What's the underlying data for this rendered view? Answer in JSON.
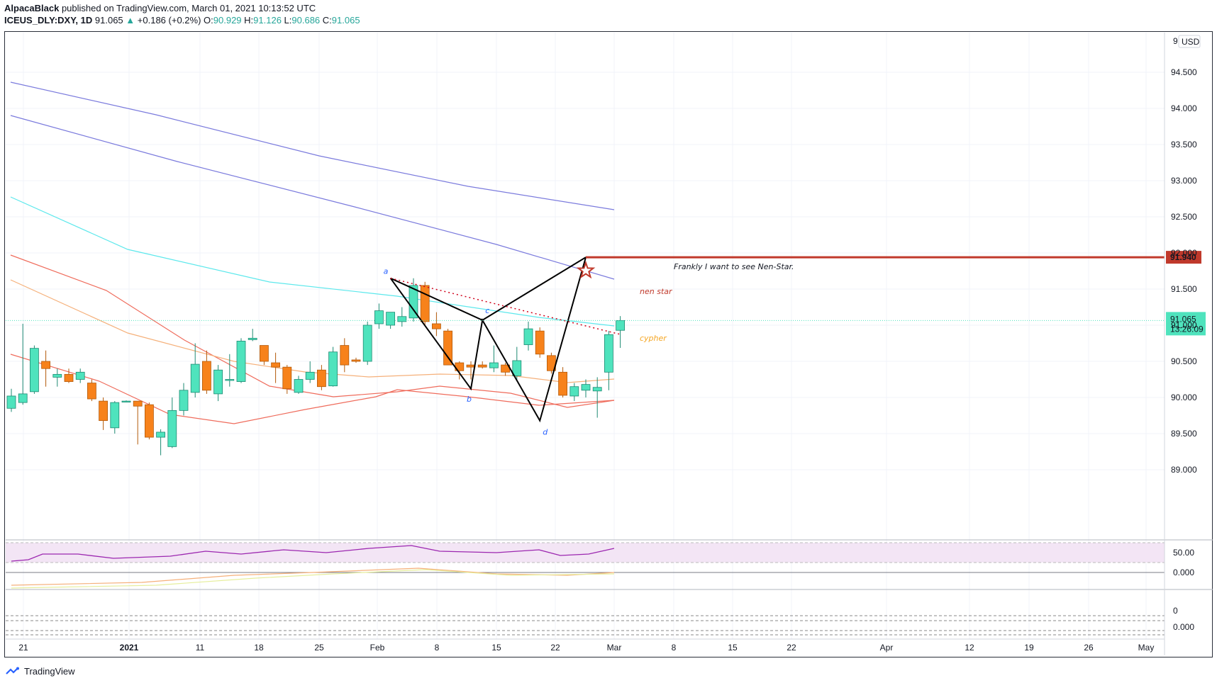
{
  "header": {
    "author": "AlpacaBlack",
    "published": "published on TradingView.com, March 01, 2021 10:13:52 UTC",
    "symbol": "ICEUS_DLY:DXY, 1D",
    "price": "91.065",
    "change": "+0.186 (+0.2%)",
    "ohlc": {
      "o": "90.929",
      "h": "91.126",
      "l": "90.686",
      "c": "91.065"
    }
  },
  "footer": {
    "brand": "TradingView"
  },
  "colors": {
    "up": "#4fe3bd",
    "down": "#f7821b",
    "accent": "#c0392b"
  },
  "chart_data": {
    "type": "candlestick",
    "currency": "USD",
    "ylim": [
      88.5,
      95.0
    ],
    "y_ticks": [
      "89.000",
      "89.500",
      "90.000",
      "90.500",
      "91.000",
      "91.500",
      "92.000",
      "92.500",
      "93.000",
      "93.500",
      "94.000",
      "94.500"
    ],
    "x_ticks": [
      "21",
      "2021",
      "11",
      "18",
      "25",
      "Feb",
      "8",
      "15",
      "22",
      "Mar",
      "8",
      "15",
      "22",
      "Apr",
      "12",
      "19",
      "26",
      "May"
    ],
    "candles": [
      {
        "o": 89.85,
        "h": 90.12,
        "l": 89.8,
        "c": 90.02
      },
      {
        "o": 89.93,
        "h": 91.02,
        "l": 89.9,
        "c": 90.05
      },
      {
        "o": 90.08,
        "h": 90.72,
        "l": 90.05,
        "c": 90.68
      },
      {
        "o": 90.5,
        "h": 90.65,
        "l": 90.15,
        "c": 90.4
      },
      {
        "o": 90.28,
        "h": 90.4,
        "l": 90.15,
        "c": 90.32
      },
      {
        "o": 90.32,
        "h": 90.4,
        "l": 90.2,
        "c": 90.22
      },
      {
        "o": 90.25,
        "h": 90.4,
        "l": 90.2,
        "c": 90.35
      },
      {
        "o": 90.2,
        "h": 90.25,
        "l": 89.95,
        "c": 89.98
      },
      {
        "o": 89.95,
        "h": 90.0,
        "l": 89.55,
        "c": 89.68
      },
      {
        "o": 89.58,
        "h": 89.95,
        "l": 89.5,
        "c": 89.93
      },
      {
        "o": 89.95,
        "h": 89.96,
        "l": 89.94,
        "c": 89.95
      },
      {
        "o": 89.95,
        "h": 89.95,
        "l": 89.35,
        "c": 89.88
      },
      {
        "o": 89.9,
        "h": 89.93,
        "l": 89.42,
        "c": 89.45
      },
      {
        "o": 89.45,
        "h": 89.56,
        "l": 89.2,
        "c": 89.52
      },
      {
        "o": 89.32,
        "h": 90.0,
        "l": 89.3,
        "c": 89.82
      },
      {
        "o": 89.82,
        "h": 90.2,
        "l": 89.75,
        "c": 90.1
      },
      {
        "o": 90.07,
        "h": 90.75,
        "l": 90.0,
        "c": 90.46
      },
      {
        "o": 90.5,
        "h": 90.65,
        "l": 90.05,
        "c": 90.1
      },
      {
        "o": 90.05,
        "h": 90.45,
        "l": 89.95,
        "c": 90.38
      },
      {
        "o": 90.25,
        "h": 90.6,
        "l": 90.15,
        "c": 90.25
      },
      {
        "o": 90.22,
        "h": 90.82,
        "l": 90.2,
        "c": 90.78
      },
      {
        "o": 90.8,
        "h": 90.95,
        "l": 90.78,
        "c": 90.82
      },
      {
        "o": 90.72,
        "h": 90.72,
        "l": 90.45,
        "c": 90.5
      },
      {
        "o": 90.48,
        "h": 90.62,
        "l": 90.2,
        "c": 90.42
      },
      {
        "o": 90.42,
        "h": 90.45,
        "l": 90.05,
        "c": 90.12
      },
      {
        "o": 90.07,
        "h": 90.3,
        "l": 90.05,
        "c": 90.25
      },
      {
        "o": 90.25,
        "h": 90.5,
        "l": 90.2,
        "c": 90.35
      },
      {
        "o": 90.38,
        "h": 90.45,
        "l": 90.1,
        "c": 90.15
      },
      {
        "o": 90.16,
        "h": 90.7,
        "l": 90.15,
        "c": 90.63
      },
      {
        "o": 90.72,
        "h": 90.82,
        "l": 90.35,
        "c": 90.45
      },
      {
        "o": 90.52,
        "h": 90.55,
        "l": 90.48,
        "c": 90.5
      },
      {
        "o": 90.5,
        "h": 91.05,
        "l": 90.45,
        "c": 91.0
      },
      {
        "o": 91.02,
        "h": 91.3,
        "l": 90.95,
        "c": 91.2
      },
      {
        "o": 91.0,
        "h": 91.18,
        "l": 90.95,
        "c": 91.18
      },
      {
        "o": 91.05,
        "h": 91.25,
        "l": 90.98,
        "c": 91.12
      },
      {
        "o": 91.1,
        "h": 91.65,
        "l": 91.05,
        "c": 91.55
      },
      {
        "o": 91.55,
        "h": 91.6,
        "l": 91.0,
        "c": 91.05
      },
      {
        "o": 91.02,
        "h": 91.18,
        "l": 90.85,
        "c": 90.95
      },
      {
        "o": 90.92,
        "h": 90.95,
        "l": 90.45,
        "c": 90.45
      },
      {
        "o": 90.48,
        "h": 90.5,
        "l": 90.25,
        "c": 90.37
      },
      {
        "o": 90.45,
        "h": 90.5,
        "l": 90.25,
        "c": 90.42
      },
      {
        "o": 90.45,
        "h": 90.5,
        "l": 90.4,
        "c": 90.42
      },
      {
        "o": 90.41,
        "h": 90.72,
        "l": 90.35,
        "c": 90.48
      },
      {
        "o": 90.45,
        "h": 90.48,
        "l": 90.3,
        "c": 90.35
      },
      {
        "o": 90.3,
        "h": 90.7,
        "l": 90.25,
        "c": 90.51
      },
      {
        "o": 90.73,
        "h": 91.05,
        "l": 90.65,
        "c": 90.95
      },
      {
        "o": 90.92,
        "h": 90.97,
        "l": 90.55,
        "c": 90.6
      },
      {
        "o": 90.58,
        "h": 90.62,
        "l": 90.33,
        "c": 90.37
      },
      {
        "o": 90.35,
        "h": 90.42,
        "l": 90.0,
        "c": 90.03
      },
      {
        "o": 90.02,
        "h": 90.2,
        "l": 89.95,
        "c": 90.15
      },
      {
        "o": 90.1,
        "h": 90.25,
        "l": 90.0,
        "c": 90.18
      },
      {
        "o": 90.09,
        "h": 90.28,
        "l": 89.72,
        "c": 90.14
      },
      {
        "o": 90.35,
        "h": 90.92,
        "l": 90.1,
        "c": 90.87
      },
      {
        "o": 90.929,
        "h": 91.126,
        "l": 90.686,
        "c": 91.065
      }
    ],
    "last_price": "91.065",
    "countdown": "13:26:09",
    "target_price": "91.940",
    "annotations": {
      "star_note": "Frankly I want to see Nen-Star.",
      "nen_label": "nen star",
      "cypher_label": "cypher",
      "points": [
        "a",
        "b",
        "c",
        "d"
      ]
    },
    "osc1_tick": "50.00",
    "osc2_tick": "0.000",
    "osc3_ticks": [
      "0",
      "0.000"
    ]
  }
}
